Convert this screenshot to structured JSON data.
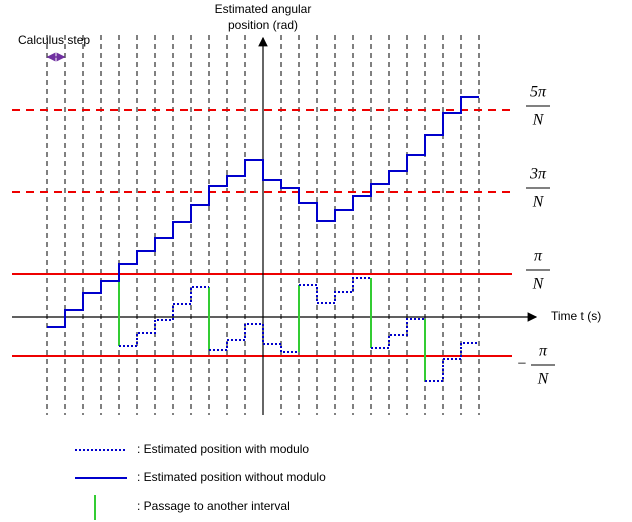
{
  "axis": {
    "y_title_line1": "Estimated angular",
    "y_title_line2": "position (rad)",
    "x_title": "Time t (s)",
    "step_label": "Calculus step"
  },
  "levels": [
    {
      "sign": "",
      "numerator": "5π",
      "denominator": "N"
    },
    {
      "sign": "",
      "numerator": "3π",
      "denominator": "N"
    },
    {
      "sign": "",
      "numerator": "π",
      "denominator": "N"
    },
    {
      "sign": "−",
      "numerator": "π",
      "denominator": "N"
    }
  ],
  "legend": [
    {
      "label": ": Estimated position with modulo"
    },
    {
      "label": ": Estimated position without modulo"
    },
    {
      "label": ": Passage to another interval"
    }
  ]
}
